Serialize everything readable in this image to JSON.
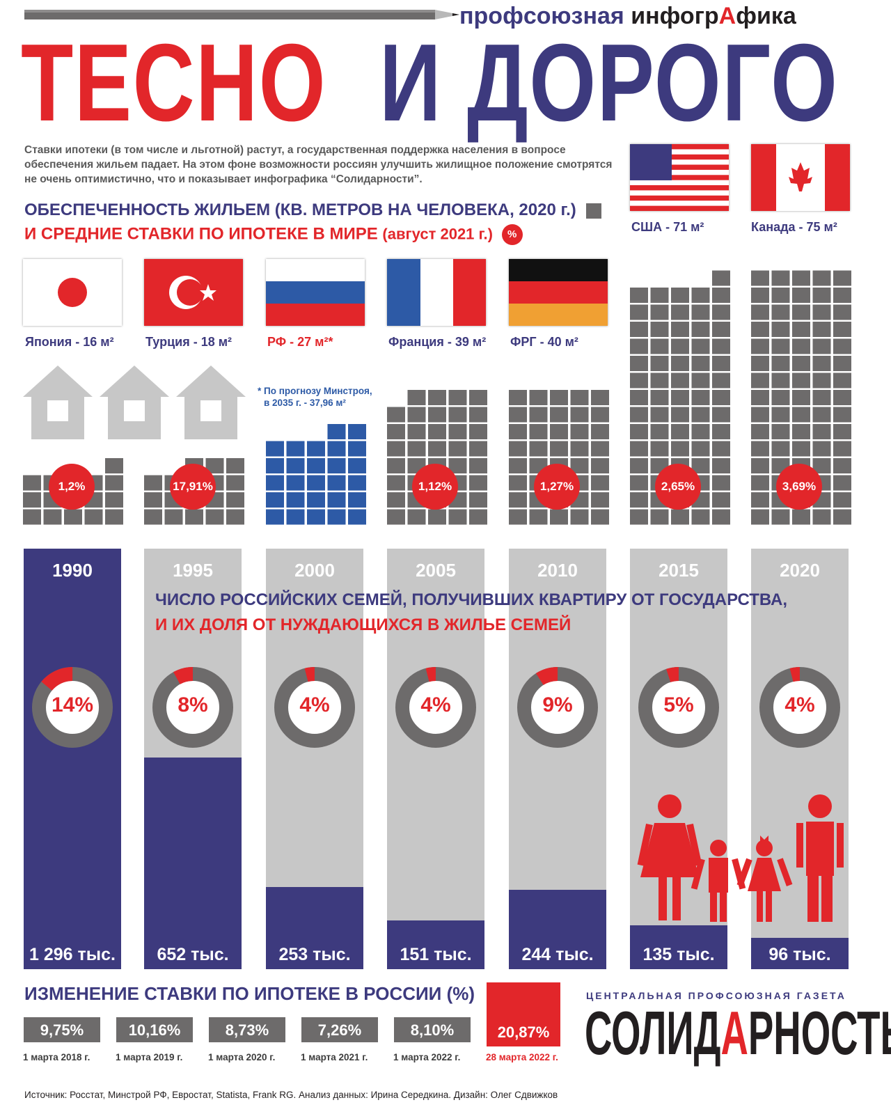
{
  "header": {
    "pretitle": "профсоюзная",
    "pretitle_bold_1": "инфогр",
    "pretitle_red": "А",
    "pretitle_bold_2": "фика",
    "title_red": "ТЕСНО",
    "title_blue": "И ДОРОГО"
  },
  "intro": "Ставки ипотеки (в том числе и льготной) растут, а государственная поддержка населения в вопросе обеспечения жильем падает. На этом фоне возможности россиян улучшить жилищное положение смотрятся не очень оптимистично, что и показывает инфографика “Солидарности”.",
  "section1": {
    "title": "ОБЕСПЕЧЕННОСТЬ ЖИЛЬЕМ (КВ. МЕТРОВ НА ЧЕЛОВЕКА, 2020 г.)",
    "subtitle_main": "И СРЕДНИЕ СТАВКИ ПО ИПОТЕКЕ В МИРЕ",
    "subtitle_paren": "(август 2021 г.)",
    "legend_pct": "%",
    "forecast_note_1": "* По прогнозу Минстроя,",
    "forecast_note_2": "в 2035 г. - 37,96 м²"
  },
  "section2": {
    "title": "ЧИСЛО РОССИЙСКИХ СЕМЕЙ, ПОЛУЧИВШИХ КВАРТИРУ ОТ ГОСУДАРСТВА,",
    "subtitle": "И ИХ ДОЛЯ ОТ НУЖДАЮЩИХСЯ В ЖИЛЬЕ СЕМЕЙ"
  },
  "section3": {
    "title": "ИЗМЕНЕНИЕ СТАВКИ ПО ИПОТЕКЕ В РОССИИ (%)"
  },
  "footer": {
    "source": "Источник: Росстат, Минстрой РФ, Евростат, Statista, Frank RG. Анализ данных: Ирина Середкина. Дизайн: Олег Сдвижков",
    "paper_tag": "ЦЕНТРАЛЬНАЯ ПРОФСОЮЗНАЯ ГАЗЕТА",
    "paper_name_1": "СОЛИД",
    "paper_name_red": "А",
    "paper_name_2": "РНОСТЬ"
  },
  "colors": {
    "red": "#e2262a",
    "navy": "#3d3a7e",
    "gray": "#6d6b6b",
    "lightgray": "#c7c7c7",
    "blue_blocks": "#2d5aa6"
  },
  "chart_data": [
    {
      "type": "bar",
      "title": "ОБЕСПЕЧЕННОСТЬ ЖИЛЬЕМ (КВ. МЕТРОВ НА ЧЕЛОВЕКА, 2020 г.)",
      "categories": [
        "Япония",
        "Турция",
        "РФ",
        "Франция",
        "ФРГ",
        "США",
        "Канада"
      ],
      "labels": [
        "Япония - 16 м²",
        "Турция - 18 м²",
        "РФ - 27 м²*",
        "Франция - 39 м²",
        "ФРГ - 40 м²",
        "США - 71 м²",
        "Канада - 75 м²"
      ],
      "series": [
        {
          "name": "кв. метров на человека",
          "values": [
            16,
            18,
            27,
            39,
            40,
            71,
            75
          ]
        },
        {
          "name": "средние ставки по ипотеке, %",
          "values": [
            1.2,
            17.91,
            null,
            1.12,
            1.27,
            2.65,
            3.69
          ],
          "labels": [
            "1,2%",
            "17,91%",
            "",
            "1,12%",
            "1,27%",
            "2,65%",
            "3,69%"
          ]
        }
      ]
    },
    {
      "type": "bar",
      "title": "ЧИСЛО РОССИЙСКИХ СЕМЕЙ, ПОЛУЧИВШИХ КВАРТИРУ ОТ ГОСУДАРСТВА, И ИХ ДОЛЯ ОТ НУЖДАЮЩИХСЯ В ЖИЛЬЕ СЕМЕЙ",
      "categories": [
        "1990",
        "1995",
        "2000",
        "2005",
        "2010",
        "2015",
        "2020"
      ],
      "series": [
        {
          "name": "семей, тыс.",
          "values": [
            1296,
            652,
            253,
            151,
            244,
            135,
            96
          ],
          "labels": [
            "1 296 тыс.",
            "652 тыс.",
            "253 тыс.",
            "151 тыс.",
            "244 тыс.",
            "135 тыс.",
            "96 тыс."
          ]
        },
        {
          "name": "доля от нуждающихся, %",
          "values": [
            14,
            8,
            4,
            4,
            9,
            5,
            4
          ],
          "labels": [
            "14%",
            "8%",
            "4%",
            "4%",
            "9%",
            "5%",
            "4%"
          ]
        }
      ]
    },
    {
      "type": "table",
      "title": "ИЗМЕНЕНИЕ СТАВКИ ПО ИПОТЕКЕ В РОССИИ (%)",
      "categories": [
        "1 марта 2018 г.",
        "1 марта 2019 г.",
        "1 марта 2020 г.",
        "1 марта 2021 г.",
        "1 марта 2022 г.",
        "28 марта 2022 г."
      ],
      "values": [
        9.75,
        10.16,
        8.73,
        7.26,
        8.1,
        20.87
      ],
      "labels": [
        "9,75%",
        "10,16%",
        "8,73%",
        "7,26%",
        "8,10%",
        "20,87%"
      ]
    }
  ]
}
